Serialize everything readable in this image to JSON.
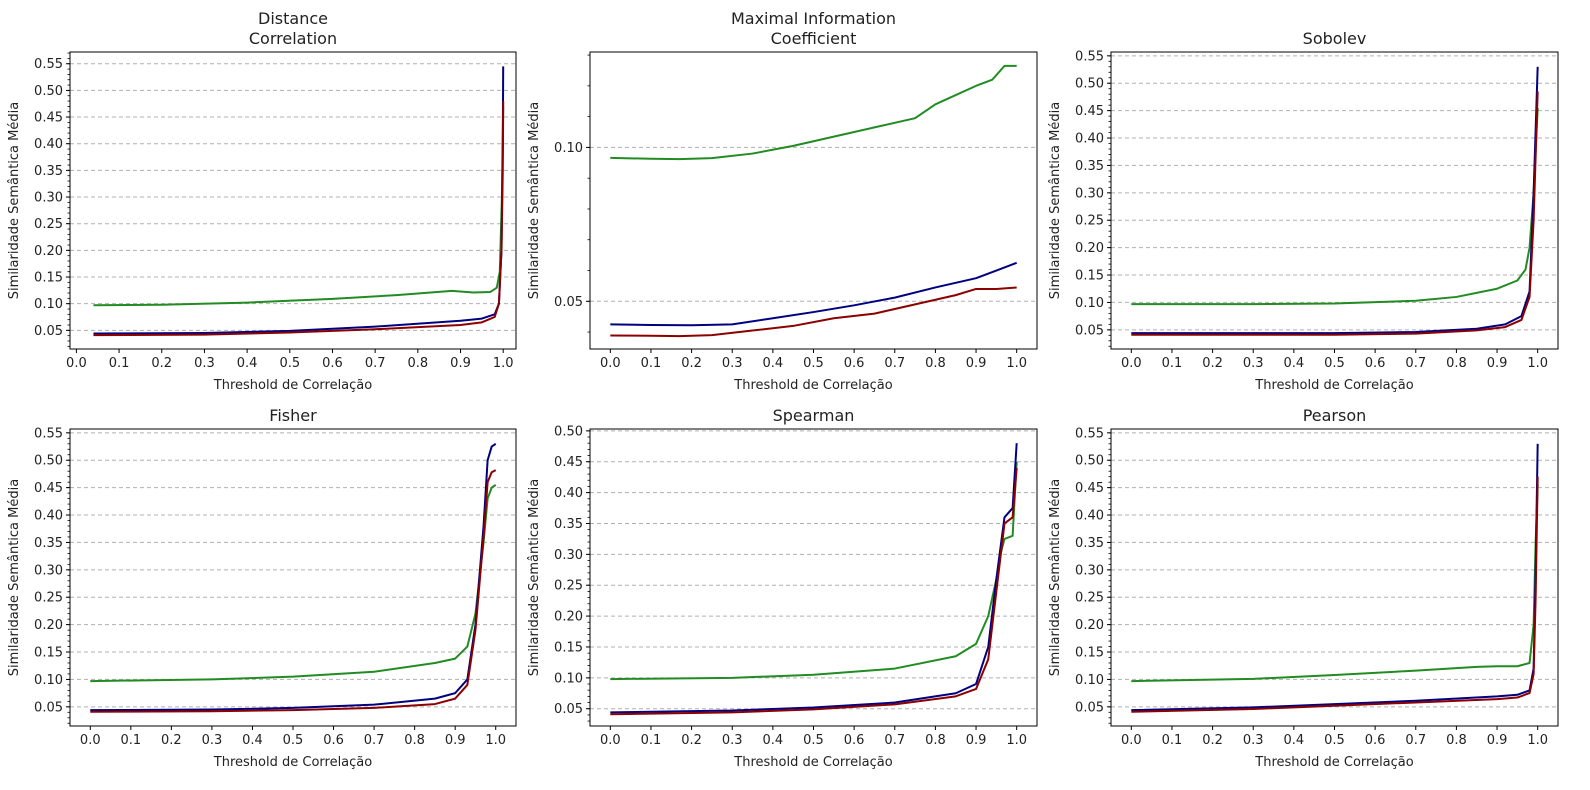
{
  "figure": {
    "colors": {
      "navy": "#000080",
      "darkred": "#8b0000",
      "green": "#228b22",
      "grid": "#b0b0b0"
    }
  },
  "chart_data": [
    {
      "type": "line",
      "title": [
        "Distance",
        "Correlation"
      ],
      "xlabel": "Threshold de Correlação",
      "ylabel": "Similaridade Semântica Média",
      "xlim": [
        -0.015,
        1.03
      ],
      "ylim": [
        0.015,
        0.572
      ],
      "xticks": [
        "0.0",
        "0.1",
        "0.2",
        "0.3",
        "0.4",
        "0.5",
        "0.6",
        "0.7",
        "0.8",
        "0.9",
        "1.0"
      ],
      "yticks": [
        "0.05",
        "0.10",
        "0.15",
        "0.20",
        "0.25",
        "0.30",
        "0.35",
        "0.40",
        "0.45",
        "0.50",
        "0.55"
      ],
      "grid": "y-dashed",
      "series": [
        {
          "color": "#228b22",
          "points": [
            [
              0.04,
              0.097
            ],
            [
              0.2,
              0.098
            ],
            [
              0.4,
              0.102
            ],
            [
              0.6,
              0.109
            ],
            [
              0.75,
              0.116
            ],
            [
              0.88,
              0.124
            ],
            [
              0.93,
              0.121
            ],
            [
              0.97,
              0.122
            ],
            [
              0.985,
              0.13
            ],
            [
              0.992,
              0.16
            ],
            [
              0.997,
              0.3
            ],
            [
              1.0,
              0.47
            ]
          ]
        },
        {
          "color": "#000080",
          "points": [
            [
              0.04,
              0.044
            ],
            [
              0.3,
              0.045
            ],
            [
              0.5,
              0.049
            ],
            [
              0.7,
              0.057
            ],
            [
              0.9,
              0.068
            ],
            [
              0.95,
              0.072
            ],
            [
              0.98,
              0.08
            ],
            [
              0.99,
              0.1
            ],
            [
              0.996,
              0.2
            ],
            [
              0.999,
              0.4
            ],
            [
              1.0,
              0.545
            ]
          ]
        },
        {
          "color": "#8b0000",
          "points": [
            [
              0.04,
              0.041
            ],
            [
              0.3,
              0.042
            ],
            [
              0.5,
              0.046
            ],
            [
              0.7,
              0.052
            ],
            [
              0.9,
              0.06
            ],
            [
              0.95,
              0.065
            ],
            [
              0.98,
              0.075
            ],
            [
              0.99,
              0.1
            ],
            [
              0.996,
              0.2
            ],
            [
              0.999,
              0.35
            ],
            [
              1.0,
              0.48
            ]
          ]
        }
      ]
    },
    {
      "type": "line",
      "title": [
        "Maximal Information",
        "Coefficient"
      ],
      "xlabel": "Threshold de Correlação",
      "ylabel": "Similaridade Semântica Média",
      "xlim": [
        -0.05,
        1.05
      ],
      "ylim": [
        0.0345,
        0.131
      ],
      "xticks": [
        "0.0",
        "0.1",
        "0.2",
        "0.3",
        "0.4",
        "0.5",
        "0.6",
        "0.7",
        "0.8",
        "0.9",
        "1.0"
      ],
      "yticks": [
        "0.05",
        "0.10"
      ],
      "grid": "y-dashed",
      "series": [
        {
          "color": "#228b22",
          "points": [
            [
              0.0,
              0.0966
            ],
            [
              0.1,
              0.0963
            ],
            [
              0.17,
              0.0962
            ],
            [
              0.25,
              0.0965
            ],
            [
              0.35,
              0.098
            ],
            [
              0.45,
              0.1005
            ],
            [
              0.55,
              0.1035
            ],
            [
              0.65,
              0.1065
            ],
            [
              0.75,
              0.1095
            ],
            [
              0.8,
              0.114
            ],
            [
              0.85,
              0.117
            ],
            [
              0.9,
              0.12
            ],
            [
              0.94,
              0.122
            ],
            [
              0.97,
              0.1265
            ],
            [
              1.0,
              0.1265
            ]
          ]
        },
        {
          "color": "#000080",
          "points": [
            [
              0.0,
              0.0425
            ],
            [
              0.1,
              0.0423
            ],
            [
              0.2,
              0.0422
            ],
            [
              0.3,
              0.0425
            ],
            [
              0.4,
              0.0445
            ],
            [
              0.5,
              0.0465
            ],
            [
              0.6,
              0.0487
            ],
            [
              0.7,
              0.0512
            ],
            [
              0.8,
              0.0545
            ],
            [
              0.9,
              0.0575
            ],
            [
              0.95,
              0.06
            ],
            [
              1.0,
              0.0625
            ]
          ]
        },
        {
          "color": "#8b0000",
          "points": [
            [
              0.0,
              0.0389
            ],
            [
              0.1,
              0.0388
            ],
            [
              0.17,
              0.0387
            ],
            [
              0.25,
              0.039
            ],
            [
              0.35,
              0.0405
            ],
            [
              0.45,
              0.042
            ],
            [
              0.55,
              0.0445
            ],
            [
              0.65,
              0.046
            ],
            [
              0.75,
              0.049
            ],
            [
              0.85,
              0.052
            ],
            [
              0.9,
              0.054
            ],
            [
              0.95,
              0.054
            ],
            [
              1.0,
              0.0545
            ]
          ]
        }
      ]
    },
    {
      "type": "line",
      "title": [
        "Sobolev"
      ],
      "xlabel": "Threshold de Correlação",
      "ylabel": "Similaridade Semântica Média",
      "xlim": [
        -0.05,
        1.05
      ],
      "ylim": [
        0.015,
        0.557
      ],
      "xticks": [
        "0.0",
        "0.1",
        "0.2",
        "0.3",
        "0.4",
        "0.5",
        "0.6",
        "0.7",
        "0.8",
        "0.9",
        "1.0"
      ],
      "yticks": [
        "0.05",
        "0.10",
        "0.15",
        "0.20",
        "0.25",
        "0.30",
        "0.35",
        "0.40",
        "0.45",
        "0.50",
        "0.55"
      ],
      "grid": "y-dashed",
      "series": [
        {
          "color": "#228b22",
          "points": [
            [
              0.0,
              0.097
            ],
            [
              0.3,
              0.097
            ],
            [
              0.5,
              0.098
            ],
            [
              0.7,
              0.103
            ],
            [
              0.8,
              0.11
            ],
            [
              0.9,
              0.125
            ],
            [
              0.95,
              0.14
            ],
            [
              0.97,
              0.16
            ],
            [
              0.98,
              0.2
            ],
            [
              0.99,
              0.3
            ],
            [
              1.0,
              0.455
            ]
          ]
        },
        {
          "color": "#000080",
          "points": [
            [
              0.0,
              0.044
            ],
            [
              0.5,
              0.044
            ],
            [
              0.7,
              0.046
            ],
            [
              0.85,
              0.052
            ],
            [
              0.92,
              0.06
            ],
            [
              0.96,
              0.075
            ],
            [
              0.98,
              0.12
            ],
            [
              0.99,
              0.3
            ],
            [
              1.0,
              0.53
            ]
          ]
        },
        {
          "color": "#8b0000",
          "points": [
            [
              0.0,
              0.041
            ],
            [
              0.5,
              0.041
            ],
            [
              0.7,
              0.043
            ],
            [
              0.85,
              0.049
            ],
            [
              0.92,
              0.055
            ],
            [
              0.96,
              0.068
            ],
            [
              0.98,
              0.11
            ],
            [
              0.99,
              0.25
            ],
            [
              1.0,
              0.485
            ]
          ]
        }
      ]
    },
    {
      "type": "line",
      "title": [
        "Fisher"
      ],
      "xlabel": "Threshold de Correlação",
      "ylabel": "Similaridade Semântica Média",
      "xlim": [
        -0.05,
        1.05
      ],
      "ylim": [
        0.015,
        0.557
      ],
      "xticks": [
        "0.0",
        "0.1",
        "0.2",
        "0.3",
        "0.4",
        "0.5",
        "0.6",
        "0.7",
        "0.8",
        "0.9",
        "1.0"
      ],
      "yticks": [
        "0.05",
        "0.10",
        "0.15",
        "0.20",
        "0.25",
        "0.30",
        "0.35",
        "0.40",
        "0.45",
        "0.50",
        "0.55"
      ],
      "grid": "y-dashed",
      "series": [
        {
          "color": "#228b22",
          "points": [
            [
              0.0,
              0.097
            ],
            [
              0.3,
              0.1
            ],
            [
              0.5,
              0.105
            ],
            [
              0.7,
              0.114
            ],
            [
              0.85,
              0.13
            ],
            [
              0.9,
              0.138
            ],
            [
              0.93,
              0.16
            ],
            [
              0.95,
              0.22
            ],
            [
              0.97,
              0.35
            ],
            [
              0.98,
              0.43
            ],
            [
              0.99,
              0.45
            ],
            [
              1.0,
              0.455
            ]
          ]
        },
        {
          "color": "#000080",
          "points": [
            [
              0.0,
              0.044
            ],
            [
              0.3,
              0.045
            ],
            [
              0.5,
              0.048
            ],
            [
              0.7,
              0.054
            ],
            [
              0.85,
              0.065
            ],
            [
              0.9,
              0.075
            ],
            [
              0.93,
              0.1
            ],
            [
              0.95,
              0.2
            ],
            [
              0.97,
              0.38
            ],
            [
              0.98,
              0.5
            ],
            [
              0.99,
              0.525
            ],
            [
              1.0,
              0.53
            ]
          ]
        },
        {
          "color": "#8b0000",
          "points": [
            [
              0.0,
              0.041
            ],
            [
              0.3,
              0.042
            ],
            [
              0.5,
              0.044
            ],
            [
              0.7,
              0.048
            ],
            [
              0.85,
              0.055
            ],
            [
              0.9,
              0.065
            ],
            [
              0.93,
              0.09
            ],
            [
              0.95,
              0.19
            ],
            [
              0.97,
              0.36
            ],
            [
              0.98,
              0.46
            ],
            [
              0.99,
              0.478
            ],
            [
              1.0,
              0.482
            ]
          ]
        }
      ]
    },
    {
      "type": "line",
      "title": [
        "Spearman"
      ],
      "xlabel": "Threshold de Correlação",
      "ylabel": "Similaridade Semântica Média",
      "xlim": [
        -0.05,
        1.05
      ],
      "ylim": [
        0.022,
        0.503
      ],
      "xticks": [
        "0.0",
        "0.1",
        "0.2",
        "0.3",
        "0.4",
        "0.5",
        "0.6",
        "0.7",
        "0.8",
        "0.9",
        "1.0"
      ],
      "yticks": [
        "0.05",
        "0.10",
        "0.15",
        "0.20",
        "0.25",
        "0.30",
        "0.35",
        "0.40",
        "0.45",
        "0.50"
      ],
      "grid": "y-dashed",
      "series": [
        {
          "color": "#228b22",
          "points": [
            [
              0.0,
              0.098
            ],
            [
              0.3,
              0.1
            ],
            [
              0.5,
              0.105
            ],
            [
              0.7,
              0.115
            ],
            [
              0.85,
              0.135
            ],
            [
              0.9,
              0.155
            ],
            [
              0.93,
              0.2
            ],
            [
              0.95,
              0.26
            ],
            [
              0.96,
              0.3
            ],
            [
              0.97,
              0.325
            ],
            [
              0.99,
              0.33
            ],
            [
              1.0,
              0.45
            ]
          ]
        },
        {
          "color": "#000080",
          "points": [
            [
              0.0,
              0.044
            ],
            [
              0.3,
              0.047
            ],
            [
              0.5,
              0.052
            ],
            [
              0.7,
              0.06
            ],
            [
              0.85,
              0.075
            ],
            [
              0.9,
              0.09
            ],
            [
              0.93,
              0.15
            ],
            [
              0.95,
              0.26
            ],
            [
              0.97,
              0.36
            ],
            [
              0.99,
              0.375
            ],
            [
              1.0,
              0.48
            ]
          ]
        },
        {
          "color": "#8b0000",
          "points": [
            [
              0.0,
              0.041
            ],
            [
              0.3,
              0.044
            ],
            [
              0.5,
              0.049
            ],
            [
              0.7,
              0.057
            ],
            [
              0.85,
              0.07
            ],
            [
              0.9,
              0.082
            ],
            [
              0.93,
              0.13
            ],
            [
              0.95,
              0.24
            ],
            [
              0.97,
              0.35
            ],
            [
              0.99,
              0.36
            ],
            [
              1.0,
              0.44
            ]
          ]
        }
      ]
    },
    {
      "type": "line",
      "title": [
        "Pearson"
      ],
      "xlabel": "Threshold de Correlação",
      "ylabel": "Similaridade Semântica Média",
      "xlim": [
        -0.05,
        1.05
      ],
      "ylim": [
        0.015,
        0.557
      ],
      "xticks": [
        "0.0",
        "0.1",
        "0.2",
        "0.3",
        "0.4",
        "0.5",
        "0.6",
        "0.7",
        "0.8",
        "0.9",
        "1.0"
      ],
      "yticks": [
        "0.05",
        "0.10",
        "0.15",
        "0.20",
        "0.25",
        "0.30",
        "0.35",
        "0.40",
        "0.45",
        "0.50",
        "0.55"
      ],
      "grid": "y-dashed",
      "series": [
        {
          "color": "#228b22",
          "points": [
            [
              0.0,
              0.097
            ],
            [
              0.3,
              0.101
            ],
            [
              0.5,
              0.108
            ],
            [
              0.7,
              0.116
            ],
            [
              0.85,
              0.123
            ],
            [
              0.9,
              0.124
            ],
            [
              0.95,
              0.124
            ],
            [
              0.98,
              0.13
            ],
            [
              0.99,
              0.2
            ],
            [
              0.995,
              0.35
            ],
            [
              1.0,
              0.455
            ]
          ]
        },
        {
          "color": "#000080",
          "points": [
            [
              0.0,
              0.044
            ],
            [
              0.3,
              0.049
            ],
            [
              0.5,
              0.055
            ],
            [
              0.7,
              0.061
            ],
            [
              0.9,
              0.069
            ],
            [
              0.95,
              0.072
            ],
            [
              0.98,
              0.08
            ],
            [
              0.99,
              0.12
            ],
            [
              0.995,
              0.3
            ],
            [
              1.0,
              0.53
            ]
          ]
        },
        {
          "color": "#8b0000",
          "points": [
            [
              0.0,
              0.041
            ],
            [
              0.3,
              0.046
            ],
            [
              0.5,
              0.052
            ],
            [
              0.7,
              0.058
            ],
            [
              0.9,
              0.064
            ],
            [
              0.95,
              0.067
            ],
            [
              0.98,
              0.075
            ],
            [
              0.99,
              0.11
            ],
            [
              0.995,
              0.25
            ],
            [
              1.0,
              0.47
            ]
          ]
        }
      ]
    }
  ]
}
